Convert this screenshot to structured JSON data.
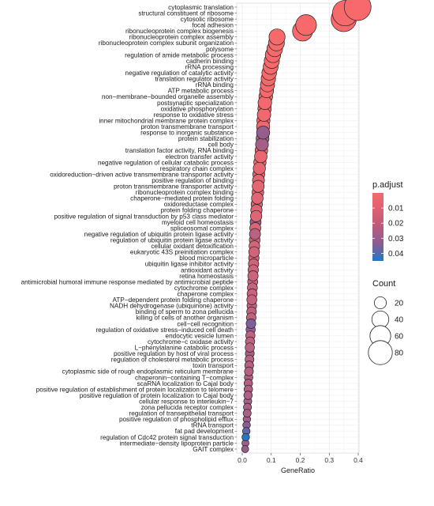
{
  "chart_data": {
    "type": "scatter",
    "xlabel": "GeneRatio",
    "xlim": [
      0.0,
      0.4
    ],
    "xticks": [
      "0.0",
      "0.1",
      "0.2",
      "0.3",
      "0.4"
    ],
    "color_legend": {
      "title": "p.adjust",
      "ticks": [
        0.01,
        0.02,
        0.03,
        0.04
      ],
      "tick_labels": [
        "0.01",
        "0.02",
        "0.03",
        "0.04"
      ],
      "range": [
        0.0,
        0.045
      ],
      "low_color": "#f8696b",
      "high_color": "#1f78c8"
    },
    "size_legend": {
      "title": "Count",
      "values": [
        20,
        40,
        60,
        80
      ],
      "labels": [
        "20",
        "40",
        "60",
        "80"
      ]
    },
    "terms": [
      {
        "label": "cytoplasmic translation",
        "x": 0.398,
        "count": 100,
        "p": 0.0
      },
      {
        "label": "structural constituent of ribosome",
        "x": 0.355,
        "count": 90,
        "p": 0.0
      },
      {
        "label": "cytosolic ribosome",
        "x": 0.35,
        "count": 88,
        "p": 0.0
      },
      {
        "label": "focal adhesion",
        "x": 0.22,
        "count": 60,
        "p": 0.0
      },
      {
        "label": "ribonucleoprotein complex biogenesis",
        "x": 0.208,
        "count": 56,
        "p": 0.0
      },
      {
        "label": "ribonucleoprotein complex assembly",
        "x": 0.12,
        "count": 36,
        "p": 0.0
      },
      {
        "label": "ribonucleoprotein complex subunit organization",
        "x": 0.118,
        "count": 35,
        "p": 0.0
      },
      {
        "label": "polysome",
        "x": 0.112,
        "count": 34,
        "p": 0.0
      },
      {
        "label": "regulation of amide metabolic process",
        "x": 0.106,
        "count": 33,
        "p": 0.0
      },
      {
        "label": "cadherin binding",
        "x": 0.102,
        "count": 32,
        "p": 0.0
      },
      {
        "label": "rRNA processing",
        "x": 0.098,
        "count": 31,
        "p": 0.0
      },
      {
        "label": "negative regulation of catalytic activity",
        "x": 0.093,
        "count": 30,
        "p": 0.001
      },
      {
        "label": "translation regulator activity",
        "x": 0.09,
        "count": 29,
        "p": 0.001
      },
      {
        "label": "rRNA binding",
        "x": 0.087,
        "count": 28,
        "p": 0.001
      },
      {
        "label": "ATP metabolic process",
        "x": 0.084,
        "count": 27,
        "p": 0.001
      },
      {
        "label": "non−membrane−bounded organelle assembly",
        "x": 0.081,
        "count": 26,
        "p": 0.001
      },
      {
        "label": "postsynaptic specialization",
        "x": 0.078,
        "count": 26,
        "p": 0.002
      },
      {
        "label": "oxidative phosphorylation",
        "x": 0.077,
        "count": 25,
        "p": 0.002
      },
      {
        "label": "response to oxidative stress",
        "x": 0.075,
        "count": 25,
        "p": 0.002
      },
      {
        "label": "inner mitochondrial membrane protein complex",
        "x": 0.073,
        "count": 24,
        "p": 0.002
      },
      {
        "label": "proton transmembrane transport",
        "x": 0.072,
        "count": 24,
        "p": 0.003
      },
      {
        "label": "response to inorganic substance",
        "x": 0.072,
        "count": 24,
        "p": 0.028
      },
      {
        "label": "protein stabilization",
        "x": 0.07,
        "count": 23,
        "p": 0.02
      },
      {
        "label": "cell body",
        "x": 0.068,
        "count": 23,
        "p": 0.024
      },
      {
        "label": "translation factor activity, RNA binding",
        "x": 0.066,
        "count": 22,
        "p": 0.004
      },
      {
        "label": "electron transfer activity",
        "x": 0.064,
        "count": 22,
        "p": 0.004
      },
      {
        "label": "negative regulation of cellular catabolic process",
        "x": 0.061,
        "count": 21,
        "p": 0.005
      },
      {
        "label": "respiratory chain complex",
        "x": 0.059,
        "count": 21,
        "p": 0.005
      },
      {
        "label": "oxidoreduction−driven active transmembrane transporter activity",
        "x": 0.057,
        "count": 20,
        "p": 0.005
      },
      {
        "label": "positive regulation of binding",
        "x": 0.056,
        "count": 20,
        "p": 0.006
      },
      {
        "label": "proton transmembrane transporter activity",
        "x": 0.055,
        "count": 20,
        "p": 0.006
      },
      {
        "label": "ribonucleoprotein complex binding",
        "x": 0.054,
        "count": 19,
        "p": 0.006
      },
      {
        "label": "chaperone−mediated protein folding",
        "x": 0.052,
        "count": 19,
        "p": 0.007
      },
      {
        "label": "oxidoreductase complex",
        "x": 0.05,
        "count": 18,
        "p": 0.007
      },
      {
        "label": "protein folding chaperone",
        "x": 0.049,
        "count": 18,
        "p": 0.008
      },
      {
        "label": "positive regulation of signal transduction by p53 class mediator",
        "x": 0.048,
        "count": 18,
        "p": 0.008
      },
      {
        "label": "myeloid cell homeostasis",
        "x": 0.046,
        "count": 17,
        "p": 0.026
      },
      {
        "label": "spliceosomal complex",
        "x": 0.045,
        "count": 17,
        "p": 0.009
      },
      {
        "label": "negative regulation of ubiquitin protein ligase activity",
        "x": 0.044,
        "count": 17,
        "p": 0.018
      },
      {
        "label": "regulation of ubiquitin protein ligase activity",
        "x": 0.043,
        "count": 16,
        "p": 0.01
      },
      {
        "label": "cellular oxidant detoxification",
        "x": 0.042,
        "count": 16,
        "p": 0.01
      },
      {
        "label": "eukaryotic 43S preinitiation complex",
        "x": 0.041,
        "count": 16,
        "p": 0.011
      },
      {
        "label": "blood microparticle",
        "x": 0.04,
        "count": 15,
        "p": 0.011
      },
      {
        "label": "ubiquitin ligase inhibitor activity",
        "x": 0.039,
        "count": 15,
        "p": 0.012
      },
      {
        "label": "antioxidant activity",
        "x": 0.038,
        "count": 15,
        "p": 0.012
      },
      {
        "label": "retina homeostasis",
        "x": 0.037,
        "count": 15,
        "p": 0.013
      },
      {
        "label": "antimicrobial humoral immune response mediated by antimicrobial peptide",
        "x": 0.036,
        "count": 14,
        "p": 0.013
      },
      {
        "label": "cytochrome complex",
        "x": 0.035,
        "count": 14,
        "p": 0.014
      },
      {
        "label": "chaperone complex",
        "x": 0.034,
        "count": 14,
        "p": 0.014
      },
      {
        "label": "ATP−dependent protein folding chaperone",
        "x": 0.033,
        "count": 14,
        "p": 0.015
      },
      {
        "label": "NADH dehydrogenase (ubiquinone) activity",
        "x": 0.033,
        "count": 13,
        "p": 0.015
      },
      {
        "label": "binding of sperm to zona pellucida",
        "x": 0.032,
        "count": 13,
        "p": 0.016
      },
      {
        "label": "killing of cells of another organism",
        "x": 0.031,
        "count": 13,
        "p": 0.016
      },
      {
        "label": "cell−cell recognition",
        "x": 0.03,
        "count": 13,
        "p": 0.033
      },
      {
        "label": "regulation of oxidative stress−induced cell death",
        "x": 0.029,
        "count": 12,
        "p": 0.03
      },
      {
        "label": "endocytic vesicle lumen",
        "x": 0.028,
        "count": 12,
        "p": 0.017
      },
      {
        "label": "cytochrome−c oxidase activity",
        "x": 0.027,
        "count": 12,
        "p": 0.017
      },
      {
        "label": "L−phenylalanine catabolic process",
        "x": 0.026,
        "count": 12,
        "p": 0.018
      },
      {
        "label": "positive regulation by host of viral process",
        "x": 0.026,
        "count": 11,
        "p": 0.024
      },
      {
        "label": "regulation of cholesterol metabolic process",
        "x": 0.025,
        "count": 11,
        "p": 0.018
      },
      {
        "label": "toxin transport",
        "x": 0.024,
        "count": 11,
        "p": 0.019
      },
      {
        "label": "cytoplasmic side of rough endoplasmic reticulum membrane",
        "x": 0.023,
        "count": 11,
        "p": 0.019
      },
      {
        "label": "chaperonin−containing T−complex",
        "x": 0.022,
        "count": 10,
        "p": 0.02
      },
      {
        "label": "scaRNA localization to Cajal body",
        "x": 0.021,
        "count": 10,
        "p": 0.02
      },
      {
        "label": "positive regulation of establishment of protein localization to telomere",
        "x": 0.021,
        "count": 10,
        "p": 0.021
      },
      {
        "label": "positive regulation of protein localization to Cajal body",
        "x": 0.02,
        "count": 10,
        "p": 0.021
      },
      {
        "label": "cellular response to interleukin−7",
        "x": 0.019,
        "count": 9,
        "p": 0.022
      },
      {
        "label": "zona pellucida receptor complex",
        "x": 0.018,
        "count": 9,
        "p": 0.022
      },
      {
        "label": "regulation of transepithelial transport",
        "x": 0.017,
        "count": 9,
        "p": 0.023
      },
      {
        "label": "positive regulation of phospholipid efflux",
        "x": 0.016,
        "count": 8,
        "p": 0.024
      },
      {
        "label": "tRNA transport",
        "x": 0.015,
        "count": 8,
        "p": 0.03
      },
      {
        "label": "fat pad development",
        "x": 0.014,
        "count": 8,
        "p": 0.036
      },
      {
        "label": "regulation of Cdc42 protein signal transduction",
        "x": 0.012,
        "count": 8,
        "p": 0.044
      },
      {
        "label": "intermediate−density lipoprotein particle",
        "x": 0.011,
        "count": 7,
        "p": 0.026
      },
      {
        "label": "GAIT complex",
        "x": 0.01,
        "count": 7,
        "p": 0.027
      }
    ]
  }
}
